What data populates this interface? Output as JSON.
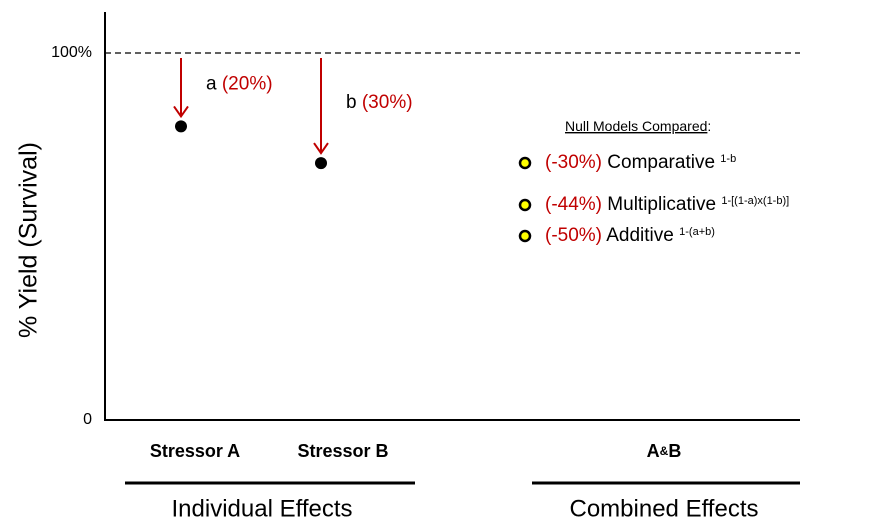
{
  "y_axis": {
    "label": "% Yield (Survival)",
    "ticks": [
      {
        "value": 100,
        "label": "100%"
      },
      {
        "value": 0,
        "label": "0"
      }
    ]
  },
  "stressors": [
    {
      "name": "Stressor A",
      "value": 80,
      "arrow_label": "a",
      "change": "(20%)"
    },
    {
      "name": "Stressor B",
      "value": 70,
      "arrow_label": "b",
      "change": "(30%)"
    }
  ],
  "combined_label": [
    "A",
    "&",
    "B"
  ],
  "groups": [
    "Individual Effects",
    "Combined Effects"
  ],
  "null_models": {
    "title": "Null Models Compared",
    "title_end": ":",
    "items": [
      {
        "change": "(-30%)",
        "name": "Comparative",
        "formula": "1-b"
      },
      {
        "change": "(-44%)",
        "name": "Multiplicative",
        "formula": "1-[(1-a)x(1-b)]"
      },
      {
        "change": "(-50%)",
        "name": "Additive",
        "formula": "1-(a+b)"
      }
    ]
  }
}
